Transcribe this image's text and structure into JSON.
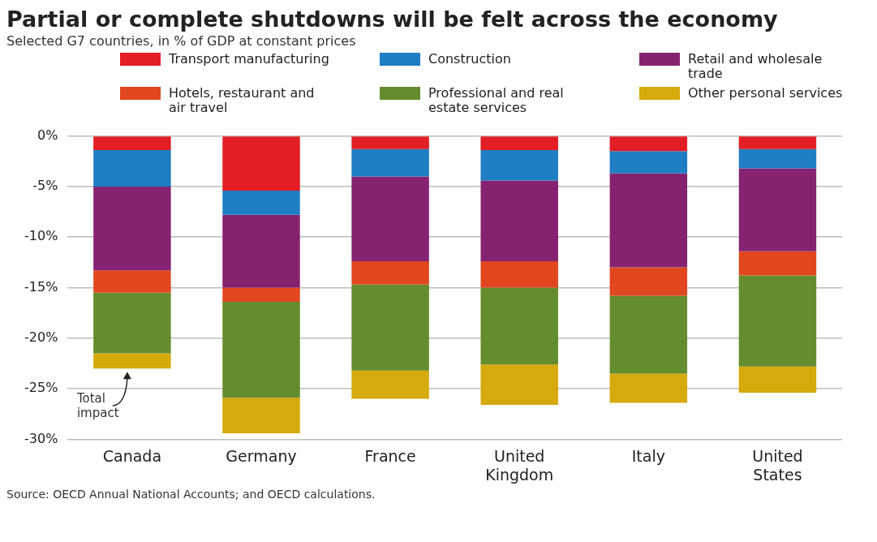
{
  "chart_data": {
    "type": "bar",
    "title": "Partial or complete shutdowns will be felt across the economy",
    "subtitle": "Selected G7 countries, in % of GDP at constant prices",
    "categories": [
      "Canada",
      "Germany",
      "France",
      "United Kingdom",
      "Italy",
      "United States"
    ],
    "stacked": true,
    "legend": "top",
    "grid": "y",
    "series": [
      {
        "name": "Transport manufacturing",
        "color": "#e31e24",
        "values": [
          -1.4,
          -5.4,
          -1.3,
          -1.4,
          -1.5,
          -1.3
        ]
      },
      {
        "name": "Construction",
        "color": "#1f7dc4",
        "values": [
          -3.6,
          -2.4,
          -2.7,
          -3.0,
          -2.2,
          -1.9
        ]
      },
      {
        "name": "Retail and wholesale trade",
        "color": "#862371",
        "values": [
          -8.3,
          -7.2,
          -8.4,
          -8.0,
          -9.3,
          -8.2
        ]
      },
      {
        "name": "Hotels, restaurant and air travel",
        "color": "#e0471f",
        "values": [
          -2.2,
          -1.4,
          -2.3,
          -2.6,
          -2.8,
          -2.4
        ]
      },
      {
        "name": "Professional and real estate services",
        "color": "#658c2d",
        "values": [
          -6.0,
          -9.5,
          -8.5,
          -7.6,
          -7.7,
          -9.0
        ]
      },
      {
        "name": "Other personal services",
        "color": "#d6a90c",
        "values": [
          -1.5,
          -3.5,
          -2.8,
          -4.0,
          -2.9,
          -2.6
        ]
      }
    ],
    "ylim": [
      -30,
      0
    ],
    "yticks": [
      {
        "value": 0,
        "label": "0%"
      },
      {
        "value": -5,
        "label": "-5%"
      },
      {
        "value": -10,
        "label": "-10%"
      },
      {
        "value": -15,
        "label": "-15%"
      },
      {
        "value": -20,
        "label": "-20%"
      },
      {
        "value": -25,
        "label": "-25%"
      },
      {
        "value": -30,
        "label": "-30%"
      }
    ],
    "annotations": [
      {
        "text": "Total impact",
        "x": "Canada",
        "y": -23.0
      },
      "Source: OECD Annual National Accounts; and OECD calculations."
    ]
  }
}
